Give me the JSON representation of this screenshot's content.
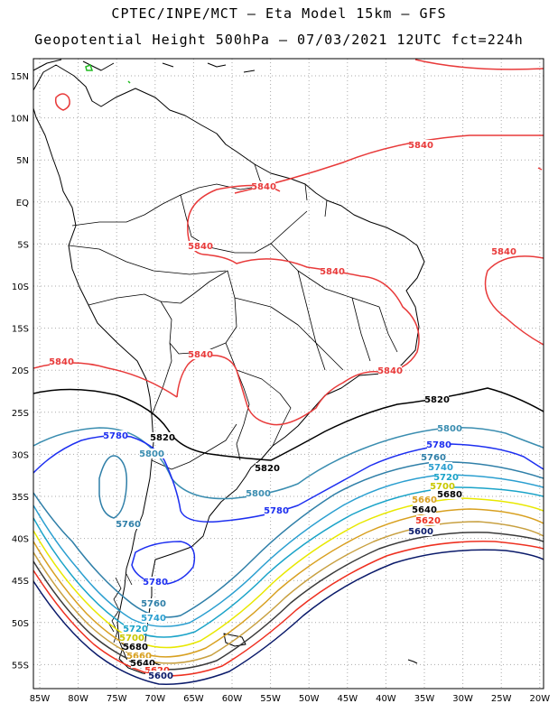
{
  "title": {
    "line1": "CPTEC/INPE/MCT –  Eta Model 15km – GFS",
    "line2": "Geopotential Height 500hPa – 07/03/2021 12UTC fct=224h"
  },
  "axes": {
    "lat_ticks": [
      "15N",
      "10N",
      "5N",
      "EQ",
      "5S",
      "10S",
      "15S",
      "20S",
      "25S",
      "30S",
      "35S",
      "40S",
      "45S",
      "50S",
      "55S"
    ],
    "lon_ticks": [
      "85W",
      "80W",
      "75W",
      "70W",
      "65W",
      "60W",
      "55W",
      "50W",
      "45W",
      "40W",
      "35W",
      "30W",
      "25W",
      "20W"
    ]
  },
  "contours": [
    {
      "value": "5840",
      "color": "#e83a3a"
    },
    {
      "value": "5820",
      "color": "#000000"
    },
    {
      "value": "5800",
      "color": "#3a8db0"
    },
    {
      "value": "5780",
      "color": "#1d2ff0"
    },
    {
      "value": "5760",
      "color": "#2f7fa8"
    },
    {
      "value": "5740",
      "color": "#2b9fd0"
    },
    {
      "value": "5720",
      "color": "#1aa3c8"
    },
    {
      "value": "5700",
      "color": "#e8e800"
    },
    {
      "value": "5680",
      "color": "#d8a020"
    },
    {
      "value": "5660",
      "color": "#c8a040"
    },
    {
      "value": "5640",
      "color": "#3a3a3a"
    },
    {
      "value": "5620",
      "color": "#ee3020"
    },
    {
      "value": "5600",
      "color": "#0a1a6a"
    }
  ],
  "contour_labels": [
    {
      "text": "5840",
      "color": "#e83a3a"
    },
    {
      "text": "5840",
      "color": "#e83a3a"
    },
    {
      "text": "5840",
      "color": "#e83a3a"
    },
    {
      "text": "5840",
      "color": "#e83a3a"
    },
    {
      "text": "5840",
      "color": "#e83a3a"
    },
    {
      "text": "5840",
      "color": "#e83a3a"
    },
    {
      "text": "5840",
      "color": "#e83a3a"
    },
    {
      "text": "5840",
      "color": "#e83a3a"
    },
    {
      "text": "5820",
      "color": "#000000"
    },
    {
      "text": "5820",
      "color": "#000000"
    },
    {
      "text": "5820",
      "color": "#000000"
    },
    {
      "text": "5800",
      "color": "#3a8db0"
    },
    {
      "text": "5800",
      "color": "#3a8db0"
    },
    {
      "text": "5800",
      "color": "#3a8db0"
    },
    {
      "text": "5780",
      "color": "#1d2ff0"
    },
    {
      "text": "5780",
      "color": "#1d2ff0"
    },
    {
      "text": "5780",
      "color": "#1d2ff0"
    },
    {
      "text": "5780",
      "color": "#1d2ff0"
    },
    {
      "text": "5760",
      "color": "#2f7fa8"
    },
    {
      "text": "5760",
      "color": "#2f7fa8"
    },
    {
      "text": "5760",
      "color": "#2f7fa8"
    },
    {
      "text": "5740",
      "color": "#2b9fd0"
    },
    {
      "text": "5740",
      "color": "#2b9fd0"
    },
    {
      "text": "5720",
      "color": "#1aa3c8"
    },
    {
      "text": "5720",
      "color": "#1aa3c8"
    },
    {
      "text": "5700",
      "color": "#c8c800"
    },
    {
      "text": "5700",
      "color": "#c8c800"
    },
    {
      "text": "5680",
      "color": "#000000"
    },
    {
      "text": "5680",
      "color": "#000000"
    },
    {
      "text": "5660",
      "color": "#d8a020"
    },
    {
      "text": "5660",
      "color": "#d8a020"
    },
    {
      "text": "5640",
      "color": "#000000"
    },
    {
      "text": "5640",
      "color": "#000000"
    },
    {
      "text": "5620",
      "color": "#ee3020"
    },
    {
      "text": "5620",
      "color": "#ee3020"
    },
    {
      "text": "5600",
      "color": "#0a1a6a"
    },
    {
      "text": "5600",
      "color": "#0a1a6a"
    }
  ]
}
